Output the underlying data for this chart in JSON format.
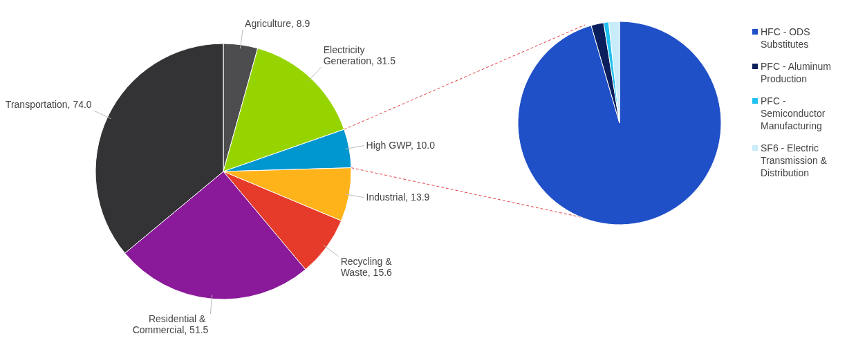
{
  "chart_data": [
    {
      "type": "pie",
      "categories": [
        "Agriculture",
        "Electricity Generation",
        "High GWP",
        "Industrial",
        "Recycling & Waste",
        "Residential & Commercial",
        "Transportation"
      ],
      "values": [
        8.9,
        31.5,
        10.0,
        13.9,
        15.6,
        51.5,
        74.0
      ],
      "value_labels": [
        "8.9",
        "31.5",
        "10.0",
        "13.9",
        "15.6",
        "51.5",
        "74.0"
      ],
      "colors": [
        "#4d4d4f",
        "#96d400",
        "#0096d0",
        "#ffb31a",
        "#e63a2a",
        "#8a1a99",
        "#333335"
      ],
      "legend": false
    },
    {
      "type": "pie",
      "categories": [
        "HFC - ODS Substitutes",
        "PFC - Aluminum Production",
        "PFC - Semiconductor Manufacturing",
        "SF6 - Electric Transmission & Distribution"
      ],
      "values": [
        95.5,
        2.0,
        0.8,
        1.7
      ],
      "colors": [
        "#2050c8",
        "#0a1f5c",
        "#20c0f0",
        "#c8ecfa"
      ],
      "legend": "right"
    }
  ]
}
